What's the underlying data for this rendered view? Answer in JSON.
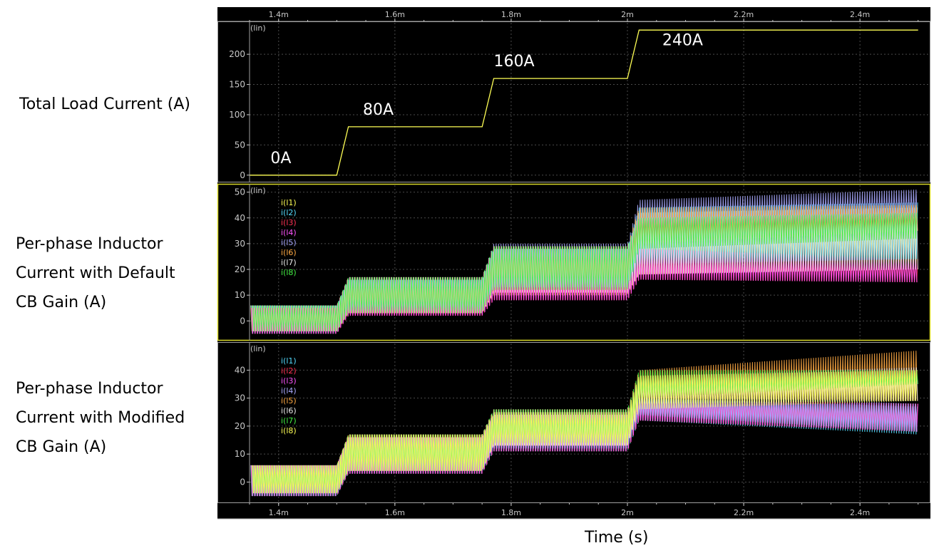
{
  "panels": {
    "load_label": [
      "Total Load Current (A)"
    ],
    "default_label": [
      "Per-phase Inductor",
      "Current with Default",
      "CB Gain (A)"
    ],
    "modified_label": [
      "Per-phase Inductor",
      "Current with Modified",
      "CB Gain (A)"
    ]
  },
  "x_axis_title": "Time (s)",
  "scale_tag": "(lin)",
  "colors": {
    "background": "#000000",
    "grid": "#4a4a4a",
    "axis_text": "#c8c8c8",
    "load_trace": "#ffff55",
    "border": "#a0a0a0",
    "selected_border": "#dcdc2a"
  },
  "chart_data": [
    {
      "type": "line",
      "title": "Total Load Current (A)",
      "x": [
        1.35,
        1.5,
        1.52,
        1.75,
        1.77,
        2.0,
        2.02,
        2.5
      ],
      "x_ticks": [
        "1.4m",
        "1.6m",
        "1.8m",
        "2m",
        "2.2m",
        "2.4m"
      ],
      "x_tick_values": [
        1.4,
        1.6,
        1.8,
        2.0,
        2.2,
        2.4
      ],
      "xlim": [
        1.35,
        2.52
      ],
      "ylim": [
        -5,
        245
      ],
      "y_ticks": [
        "0",
        "50",
        "100",
        "150",
        "200"
      ],
      "y_tick_values": [
        0,
        50,
        100,
        150,
        200
      ],
      "series": [
        {
          "values": [
            0,
            0,
            80,
            80,
            160,
            160,
            240,
            240
          ],
          "color": "#ffff55"
        }
      ],
      "annotations": [
        {
          "text": "0A",
          "x": 1.386,
          "y": 20
        },
        {
          "text": "80A",
          "x": 1.545,
          "y": 100
        },
        {
          "text": "160A",
          "x": 1.77,
          "y": 180
        },
        {
          "text": "240A",
          "x": 2.06,
          "y": 215
        }
      ],
      "grid": true
    },
    {
      "type": "line",
      "title": "Per-phase Inductor Current with Default CB Gain (A)",
      "xlim": [
        1.35,
        2.52
      ],
      "ylim": [
        -6,
        51
      ],
      "y_ticks": [
        "0",
        "10",
        "20",
        "30",
        "40",
        "50"
      ],
      "y_tick_values": [
        0,
        10,
        20,
        30,
        40,
        50
      ],
      "legend": [
        "i(l1)",
        "i(l2)",
        "i(l3)",
        "i(l4)",
        "i(l5)",
        "i(l6)",
        "i(l7)",
        "i(l8)"
      ],
      "legend_colors": [
        "#ffff55",
        "#55ddff",
        "#ff3355",
        "#ff55ff",
        "#aaaaff",
        "#ffaa44",
        "#e8e8e8",
        "#44ee44"
      ],
      "envelopes": [
        {
          "name": "i(l1)",
          "color": "#ffff55",
          "low": [
            -4,
            3,
            10,
            18,
            21
          ],
          "high": [
            6,
            16,
            28,
            42,
            44
          ]
        },
        {
          "name": "i(l2)",
          "color": "#55ddff",
          "low": [
            -5,
            4,
            12,
            22,
            24
          ],
          "high": [
            6,
            16,
            28,
            44,
            46
          ]
        },
        {
          "name": "i(l3)",
          "color": "#ff3355",
          "low": [
            -5,
            2,
            8,
            16,
            15
          ],
          "high": [
            5,
            8,
            18,
            28,
            24
          ]
        },
        {
          "name": "i(l4)",
          "color": "#ff55ff",
          "low": [
            -5,
            2,
            8,
            16,
            15
          ],
          "high": [
            5,
            8,
            18,
            28,
            24
          ]
        },
        {
          "name": "i(l5)",
          "color": "#aaaaff",
          "low": [
            -4,
            4,
            13,
            32,
            37
          ],
          "high": [
            6,
            17,
            30,
            47,
            51
          ]
        },
        {
          "name": "i(l6)",
          "color": "#ffaa44",
          "low": [
            -4,
            3,
            12,
            30,
            35
          ],
          "high": [
            6,
            17,
            29,
            44,
            45
          ]
        },
        {
          "name": "i(l7)",
          "color": "#e8e8e8",
          "low": [
            -4,
            3,
            11,
            18,
            20
          ],
          "high": [
            6,
            17,
            29,
            40,
            42
          ]
        },
        {
          "name": "i(l8)",
          "color": "#44ee44",
          "low": [
            -4,
            3,
            12,
            28,
            32
          ],
          "high": [
            6,
            17,
            29,
            40,
            42
          ]
        }
      ],
      "envelope_x": [
        1.35,
        1.52,
        1.77,
        2.02,
        2.5
      ],
      "grid": true
    },
    {
      "type": "line",
      "title": "Per-phase Inductor Current with Modified CB Gain (A)",
      "xlim": [
        1.35,
        2.52
      ],
      "ylim": [
        -6,
        48
      ],
      "y_ticks": [
        "0",
        "10",
        "20",
        "30",
        "40"
      ],
      "y_tick_values": [
        0,
        10,
        20,
        30,
        40
      ],
      "legend": [
        "i(l1)",
        "i(l2)",
        "i(l3)",
        "i(l4)",
        "i(l5)",
        "i(l6)",
        "i(l7)",
        "i(l8)"
      ],
      "legend_colors": [
        "#55ddff",
        "#ff3355",
        "#ff55ff",
        "#aaaaff",
        "#ffaa44",
        "#e8e8e8",
        "#44ee44",
        "#ffff55"
      ],
      "envelopes": [
        {
          "name": "i(l1)",
          "color": "#55ddff",
          "low": [
            -5,
            3,
            11,
            22,
            17
          ],
          "high": [
            6,
            16,
            24,
            30,
            27
          ]
        },
        {
          "name": "i(l2)",
          "color": "#ff3355",
          "low": [
            -5,
            3,
            11,
            22,
            18
          ],
          "high": [
            6,
            16,
            24,
            30,
            28
          ]
        },
        {
          "name": "i(l3)",
          "color": "#ff55ff",
          "low": [
            -5,
            3,
            11,
            22,
            18
          ],
          "high": [
            6,
            16,
            24,
            30,
            28
          ]
        },
        {
          "name": "i(l4)",
          "color": "#aaaaff",
          "low": [
            -5,
            4,
            12,
            24,
            18
          ],
          "high": [
            6,
            16,
            25,
            32,
            28
          ]
        },
        {
          "name": "i(l5)",
          "color": "#ffaa44",
          "low": [
            -4,
            4,
            14,
            30,
            29
          ],
          "high": [
            6,
            17,
            26,
            40,
            47
          ]
        },
        {
          "name": "i(l6)",
          "color": "#e8e8e8",
          "low": [
            -4,
            4,
            13,
            28,
            29
          ],
          "high": [
            6,
            17,
            26,
            38,
            41
          ]
        },
        {
          "name": "i(l7)",
          "color": "#44ee44",
          "low": [
            -4,
            4,
            14,
            30,
            35
          ],
          "high": [
            6,
            17,
            26,
            40,
            40
          ]
        },
        {
          "name": "i(l8)",
          "color": "#ffff55",
          "low": [
            -4,
            4,
            13,
            26,
            29
          ],
          "high": [
            6,
            17,
            25,
            38,
            40
          ]
        }
      ],
      "envelope_x": [
        1.35,
        1.52,
        1.77,
        2.02,
        2.5
      ],
      "grid": true
    }
  ]
}
